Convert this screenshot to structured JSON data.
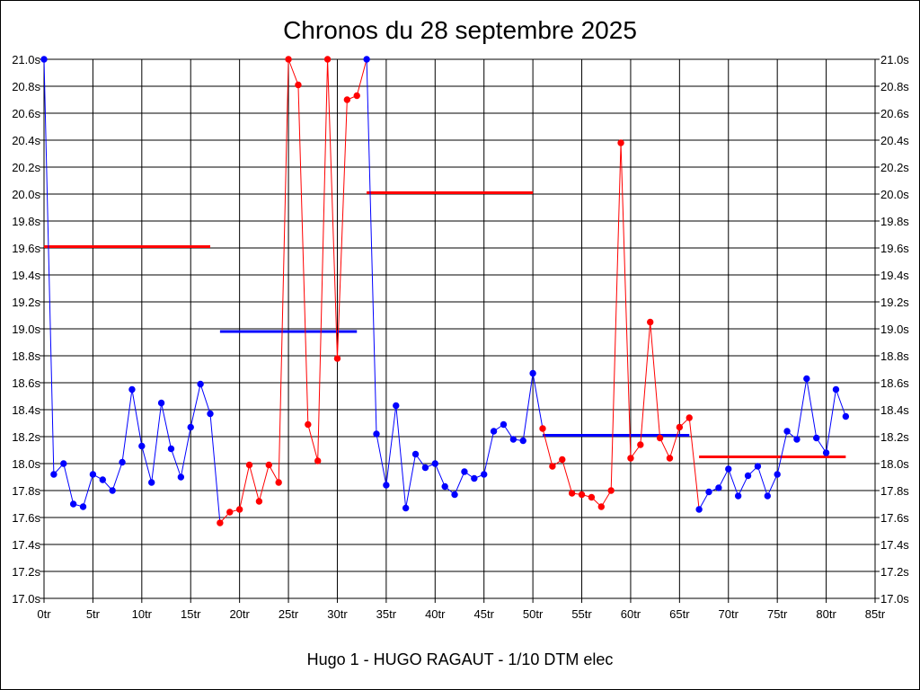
{
  "chart_data": {
    "type": "line",
    "title": "Chronos du 28 septembre 2025",
    "subtitle": "Hugo 1 - HUGO RAGAUT - 1/10 DTM elec",
    "xlim": [
      0,
      85
    ],
    "ylim": [
      17.0,
      21.0
    ],
    "x_ticks": [
      0,
      5,
      10,
      15,
      20,
      25,
      30,
      35,
      40,
      45,
      50,
      55,
      60,
      65,
      70,
      75,
      80,
      85
    ],
    "x_tick_labels": [
      "0tr",
      "5tr",
      "10tr",
      "15tr",
      "20tr",
      "25tr",
      "30tr",
      "35tr",
      "40tr",
      "45tr",
      "50tr",
      "55tr",
      "60tr",
      "65tr",
      "70tr",
      "75tr",
      "80tr",
      "85tr"
    ],
    "y_ticks": [
      17.0,
      17.2,
      17.4,
      17.6,
      17.8,
      18.0,
      18.2,
      18.4,
      18.6,
      18.8,
      19.0,
      19.2,
      19.4,
      19.6,
      19.8,
      20.0,
      20.2,
      20.4,
      20.6,
      20.8,
      21.0
    ],
    "y_tick_labels": [
      "17.0s",
      "17.2s",
      "17.4s",
      "17.6s",
      "17.8s",
      "18.0s",
      "18.2s",
      "18.4s",
      "18.6s",
      "18.8s",
      "19.0s",
      "19.2s",
      "19.4s",
      "19.6s",
      "19.8s",
      "20.0s",
      "20.2s",
      "20.4s",
      "20.6s",
      "20.8s",
      "21.0s"
    ],
    "grid": true,
    "series": [
      {
        "color": "#0000ff",
        "x": [
          0,
          1,
          2,
          3,
          4,
          5,
          6,
          7,
          8,
          9,
          10,
          11,
          12,
          13,
          14,
          15,
          16,
          17
        ],
        "y": [
          21.0,
          17.92,
          18.0,
          17.7,
          17.68,
          17.92,
          17.88,
          17.8,
          18.01,
          18.55,
          18.13,
          17.86,
          18.45,
          18.11,
          17.9,
          18.27,
          18.59,
          18.37
        ]
      },
      {
        "color": "#ff0000",
        "x": [
          18,
          19,
          20,
          21,
          22,
          23,
          24,
          25,
          26,
          27,
          28,
          29,
          30,
          31,
          32
        ],
        "y": [
          17.56,
          17.64,
          17.66,
          17.99,
          17.72,
          17.99,
          17.86,
          21.0,
          20.81,
          18.29,
          18.02,
          21.0,
          18.78,
          20.7,
          20.73
        ]
      },
      {
        "color": "#0000ff",
        "x": [
          33,
          34,
          35,
          36,
          37,
          38,
          39,
          40,
          41,
          42,
          43,
          44,
          45,
          46,
          47,
          48,
          49,
          50
        ],
        "y": [
          21.0,
          18.22,
          17.84,
          18.43,
          17.67,
          18.07,
          17.97,
          18.0,
          17.83,
          17.77,
          17.94,
          17.89,
          17.92,
          18.24,
          18.29,
          18.18,
          18.17,
          18.67
        ]
      },
      {
        "color": "#ff0000",
        "x": [
          51,
          52,
          53,
          54,
          55,
          56,
          57,
          58,
          59,
          60,
          61,
          62,
          63,
          64,
          65,
          66
        ],
        "y": [
          18.26,
          17.98,
          18.03,
          17.78,
          17.77,
          17.75,
          17.68,
          17.8,
          20.38,
          18.04,
          18.14,
          19.05,
          18.19,
          18.04,
          18.27,
          18.34
        ]
      },
      {
        "color": "#0000ff",
        "x": [
          67,
          68,
          69,
          70,
          71,
          72,
          73,
          74,
          75,
          76,
          77,
          78,
          79,
          80,
          81,
          82
        ],
        "y": [
          17.66,
          17.79,
          17.82,
          17.96,
          17.76,
          17.91,
          17.98,
          17.76,
          17.92,
          18.24,
          18.18,
          18.63,
          18.19,
          18.08,
          18.55,
          18.35
        ]
      }
    ],
    "average_lines": [
      {
        "color": "#ff0000",
        "x_start": 0,
        "x_end": 17,
        "y": 19.61
      },
      {
        "color": "#0000ff",
        "x_start": 18,
        "x_end": 32,
        "y": 18.98
      },
      {
        "color": "#ff0000",
        "x_start": 33,
        "x_end": 50,
        "y": 20.01
      },
      {
        "color": "#0000ff",
        "x_start": 51,
        "x_end": 66,
        "y": 18.21
      },
      {
        "color": "#ff0000",
        "x_start": 67,
        "x_end": 82,
        "y": 18.05
      }
    ]
  }
}
